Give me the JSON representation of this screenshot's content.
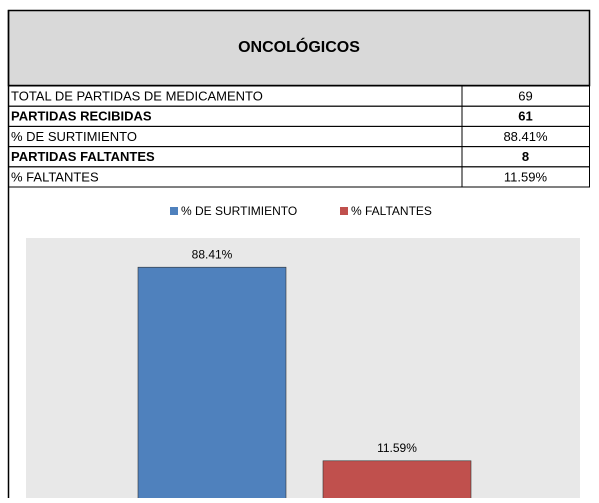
{
  "title": "ONCOLÓGICOS",
  "table": {
    "rows": [
      {
        "label": "TOTAL DE PARTIDAS DE MEDICAMENTO",
        "value": "69",
        "bold": false
      },
      {
        "label": "PARTIDAS RECIBIDAS",
        "value": "61",
        "bold": true
      },
      {
        "label": "% DE SURTIMIENTO",
        "value": "88.41%",
        "bold": false
      },
      {
        "label": "PARTIDAS FALTANTES",
        "value": "8",
        "bold": true
      },
      {
        "label": "% FALTANTES",
        "value": "11.59%",
        "bold": false
      }
    ]
  },
  "chart_data": {
    "type": "bar",
    "ylim": [
      0,
      100
    ],
    "legend": "top",
    "series": [
      {
        "name": "% DE SURTIMIENTO",
        "color": "#4f81bd",
        "values": [
          88.41
        ],
        "value_labels": [
          "88.41%"
        ]
      },
      {
        "name": "% FALTANTES",
        "color": "#c0504d",
        "values": [
          11.59
        ],
        "value_labels": [
          "11.59%"
        ]
      }
    ]
  }
}
